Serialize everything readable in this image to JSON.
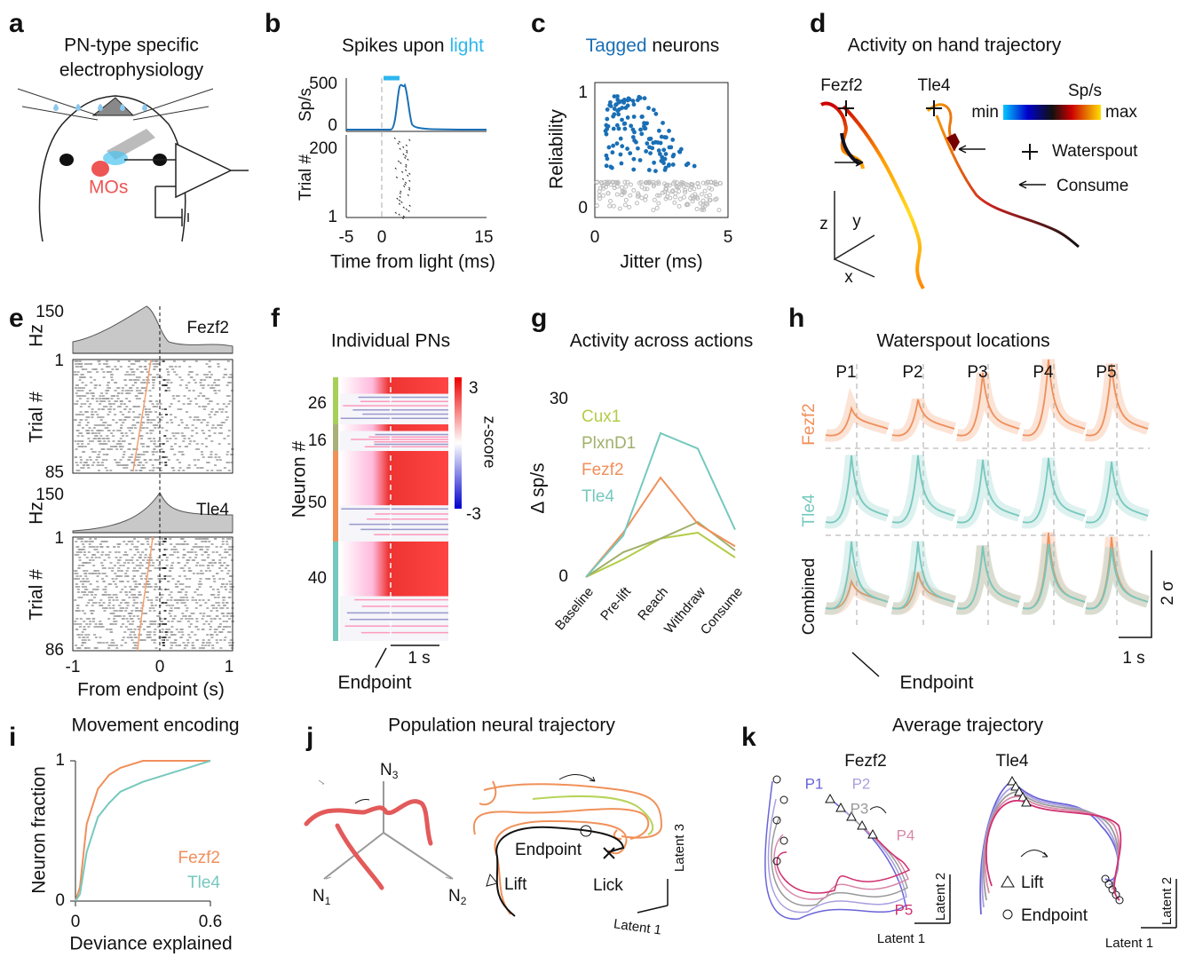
{
  "panels": {
    "a": {
      "letter": "a",
      "title": [
        "PN-type specific",
        "electrophysiology"
      ],
      "region": "MOs"
    },
    "b": {
      "letter": "b",
      "title": "Spikes upon ",
      "title_highlight": "light",
      "rate_label": "Sp/s",
      "rate_ticks": [
        500,
        0
      ],
      "trial_label": "Trial #",
      "trial_ticks": [
        200,
        1
      ],
      "xticks": [
        -5,
        0,
        15
      ],
      "xlabel": "Time from light (ms)"
    },
    "c": {
      "letter": "c",
      "title_highlight": "Tagged",
      "title": " neurons",
      "ylabel": "Reliability",
      "yticks": [
        1,
        0
      ],
      "xticks": [
        0,
        5
      ],
      "xlabel": "Jitter (ms)"
    },
    "d": {
      "letter": "d",
      "title": "Activity on hand trajectory",
      "types": [
        "Fezf2",
        "Tle4"
      ],
      "colorbar_label": "Sp/s",
      "colorbar_min": "min",
      "colorbar_max": "max",
      "waterspout": "Waterspout",
      "consume": "Consume",
      "axes": [
        "z",
        "y",
        "x"
      ]
    },
    "e": {
      "letter": "e",
      "rate_label": "Hz",
      "rate_max": [
        150,
        150
      ],
      "types": [
        "Fezf2",
        "Tle4"
      ],
      "trial_label": "Trial #",
      "trial_ticks": [
        [
          1,
          85
        ],
        [
          1,
          86
        ]
      ],
      "xticks": [
        -1,
        0,
        1
      ],
      "xlabel": "From endpoint (s)"
    },
    "f": {
      "letter": "f",
      "title": "Individual PNs",
      "group_counts": [
        26,
        16,
        50,
        40
      ],
      "ylabel": "Neuron #",
      "colorbar_ticks": [
        3,
        -3
      ],
      "colorbar_label": "z-score",
      "scale": "1 s",
      "endpoint": "Endpoint"
    },
    "g": {
      "letter": "g"
    },
    "h": {
      "letter": "h",
      "title": "Waterspout locations",
      "locations": [
        "P1",
        "P2",
        "P3",
        "P4",
        "P5"
      ],
      "rows": [
        "Fezf2",
        "Tle4",
        "Combined"
      ],
      "scale_y": "2 σ",
      "scale_x": "1 s",
      "endpoint": "Endpoint"
    },
    "i": {
      "letter": "i"
    },
    "j": {
      "letter": "j",
      "title": "Population neural trajectory",
      "axes": [
        {
          "base": "N",
          "sub": "3"
        },
        {
          "base": "N",
          "sub": "1"
        },
        {
          "base": "N",
          "sub": "2"
        }
      ],
      "endpoint": "Endpoint",
      "lift": "Lift",
      "lick": "Lick",
      "latent_y": "Latent 3",
      "latent_x": "Latent 1"
    },
    "k": {
      "letter": "k",
      "title": "Average trajectory",
      "types": [
        "Fezf2",
        "Tle4"
      ],
      "locations": [
        "P1",
        "P2",
        "P3",
        "P4",
        "P5"
      ],
      "lift": "Lift",
      "endpoint": "Endpoint",
      "latent_y": [
        "Latent 2",
        "Latent 2"
      ],
      "latent_x": [
        "Latent 1",
        "Latent 1"
      ]
    }
  },
  "chart_data": [
    {
      "type": "line",
      "title": "Activity across actions",
      "categories": [
        "Baseline",
        "Pre-lift",
        "Reach",
        "Withdraw",
        "Consume"
      ],
      "ylabel": "Δ sp/s",
      "ylim": [
        0,
        30
      ],
      "yticks": [
        0,
        30
      ],
      "series": [
        {
          "name": "Cux1",
          "color": "#b3cc47",
          "values": [
            0,
            3,
            6.5,
            7.5,
            3.3
          ]
        },
        {
          "name": "PlxnD1",
          "color": "#a0b06a",
          "values": [
            0,
            4.2,
            6.5,
            9.3,
            4.5
          ]
        },
        {
          "name": "Fezf2",
          "color": "#f08f5a",
          "values": [
            0,
            7.5,
            16.8,
            9,
            5.2
          ]
        },
        {
          "name": "Tle4",
          "color": "#76c8be",
          "values": [
            0,
            7,
            24.3,
            21.7,
            8
          ]
        }
      ]
    },
    {
      "type": "line",
      "title": "Movement encoding",
      "xlabel": "Deviance explained",
      "ylabel": "Neuron fraction",
      "xlim": [
        0,
        0.6
      ],
      "xticks": [
        0,
        0.6
      ],
      "ylim": [
        0,
        1
      ],
      "yticks": [
        0,
        1
      ],
      "x": [
        0,
        0.02,
        0.05,
        0.1,
        0.15,
        0.2,
        0.3,
        0.4,
        0.5,
        0.6
      ],
      "series": [
        {
          "name": "Fezf2",
          "color": "#f08f5a",
          "values": [
            0,
            0.1,
            0.55,
            0.8,
            0.9,
            0.95,
            1,
            1,
            1,
            1
          ]
        },
        {
          "name": "Tle4",
          "color": "#76c8be",
          "values": [
            0,
            0.05,
            0.35,
            0.6,
            0.7,
            0.78,
            0.85,
            0.9,
            0.95,
            1
          ]
        }
      ]
    }
  ]
}
